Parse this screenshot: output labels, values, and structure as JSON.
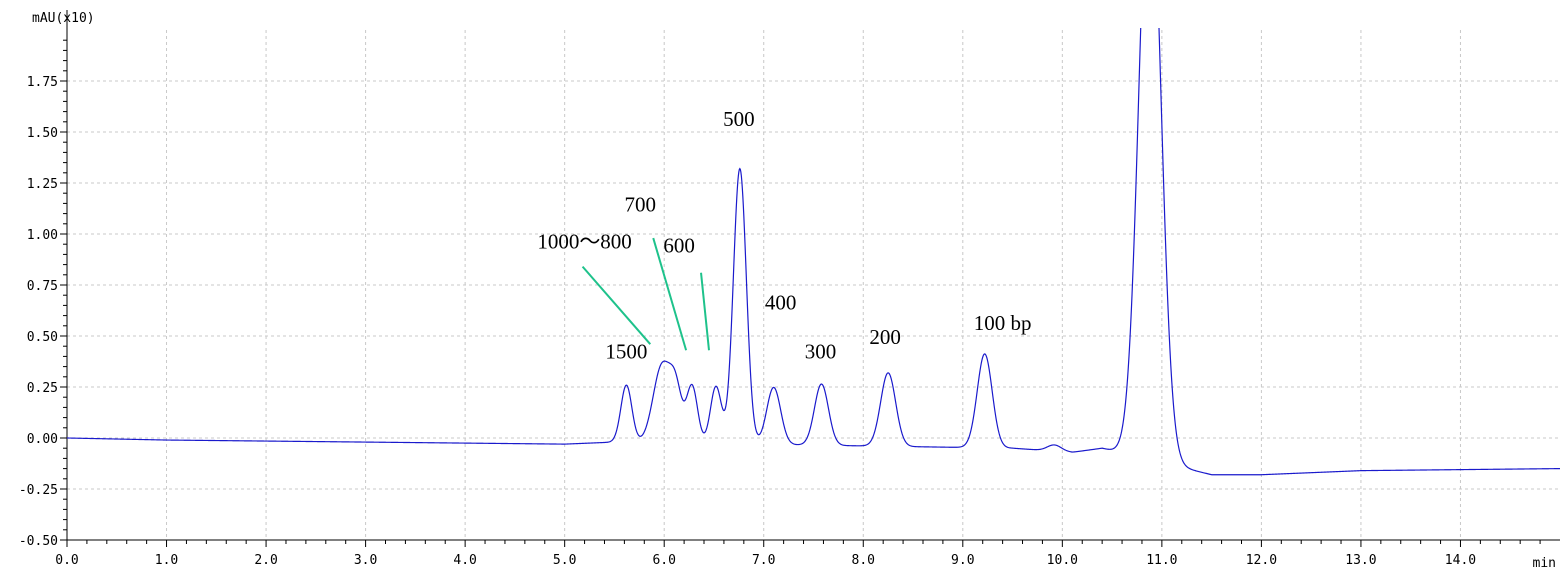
{
  "chart_data": {
    "type": "line",
    "title": "",
    "ylabel": "mAU(x10)",
    "xlabel": "min",
    "xlim": [
      0,
      15
    ],
    "ylim": [
      -0.5,
      2.0
    ],
    "grid": true,
    "x_ticks": [
      {
        "value": 0,
        "label": "0.0"
      },
      {
        "value": 1,
        "label": "1.0"
      },
      {
        "value": 2,
        "label": "2.0"
      },
      {
        "value": 3,
        "label": "3.0"
      },
      {
        "value": 4,
        "label": "4.0"
      },
      {
        "value": 5,
        "label": "5.0"
      },
      {
        "value": 6,
        "label": "6.0"
      },
      {
        "value": 7,
        "label": "7.0"
      },
      {
        "value": 8,
        "label": "8.0"
      },
      {
        "value": 9,
        "label": "9.0"
      },
      {
        "value": 10,
        "label": "10.0"
      },
      {
        "value": 11,
        "label": "11.0"
      },
      {
        "value": 12,
        "label": "12.0"
      },
      {
        "value": 13,
        "label": "13.0"
      },
      {
        "value": 14,
        "label": "14.0"
      }
    ],
    "y_ticks": [
      {
        "value": 1.75,
        "label": "1.75"
      },
      {
        "value": 1.5,
        "label": "1.50"
      },
      {
        "value": 1.25,
        "label": "1.25"
      },
      {
        "value": 1.0,
        "label": "1.00"
      },
      {
        "value": 0.75,
        "label": "0.75"
      },
      {
        "value": 0.5,
        "label": "0.50"
      },
      {
        "value": 0.25,
        "label": "0.25"
      },
      {
        "value": 0.0,
        "label": "0.00"
      },
      {
        "value": -0.25,
        "label": "-0.25"
      },
      {
        "value": -0.5,
        "label": "-0.50"
      }
    ],
    "baseline": {
      "before": [
        [
          0,
          0.0
        ],
        [
          1,
          -0.01
        ],
        [
          3,
          -0.02
        ],
        [
          5,
          -0.03
        ],
        [
          5.5,
          -0.02
        ]
      ],
      "between": [
        [
          9.5,
          -0.05
        ],
        [
          10.1,
          -0.07
        ],
        [
          10.4,
          -0.05
        ]
      ],
      "after": [
        [
          11.5,
          -0.18
        ],
        [
          12,
          -0.18
        ],
        [
          13,
          -0.16
        ],
        [
          15,
          -0.15
        ]
      ]
    },
    "peaks": [
      {
        "x": 5.62,
        "height": 0.28,
        "width": 0.055
      },
      {
        "x": 5.98,
        "height": 0.38,
        "width": 0.09
      },
      {
        "x": 6.12,
        "height": 0.22,
        "width": 0.06
      },
      {
        "x": 6.28,
        "height": 0.28,
        "width": 0.055
      },
      {
        "x": 6.52,
        "height": 0.28,
        "width": 0.055
      },
      {
        "x": 6.76,
        "height": 1.35,
        "width": 0.065
      },
      {
        "x": 7.1,
        "height": 0.28,
        "width": 0.07
      },
      {
        "x": 7.58,
        "height": 0.3,
        "width": 0.07
      },
      {
        "x": 8.25,
        "height": 0.36,
        "width": 0.075
      },
      {
        "x": 9.22,
        "height": 0.46,
        "width": 0.075
      },
      {
        "x": 9.92,
        "height": 0.03,
        "width": 0.07
      },
      {
        "x": 10.88,
        "height": 3.0,
        "width": 0.11
      }
    ],
    "annotations": [
      {
        "text": "1500",
        "x": 5.62,
        "y": 0.39
      },
      {
        "text": "1000〜800",
        "x": 5.2,
        "y": 0.93
      },
      {
        "text": "700",
        "x": 5.76,
        "y": 1.11
      },
      {
        "text": "600",
        "x": 6.15,
        "y": 0.91
      },
      {
        "text": "500",
        "x": 6.75,
        "y": 1.53
      },
      {
        "text": "400",
        "x": 7.17,
        "y": 0.63
      },
      {
        "text": "300",
        "x": 7.57,
        "y": 0.39
      },
      {
        "text": "200",
        "x": 8.22,
        "y": 0.46
      },
      {
        "text": "100 bp",
        "x": 9.4,
        "y": 0.53
      }
    ],
    "pointer_lines": [
      {
        "from": [
          5.18,
          0.84
        ],
        "to": [
          5.86,
          0.46
        ]
      },
      {
        "from": [
          5.89,
          0.98
        ],
        "to": [
          6.22,
          0.43
        ]
      },
      {
        "from": [
          6.37,
          0.81
        ],
        "to": [
          6.45,
          0.43
        ]
      }
    ],
    "colors": {
      "trace": "#1a1acc",
      "pointer": "#1ec28b",
      "grid": "#c8c8c8"
    }
  }
}
